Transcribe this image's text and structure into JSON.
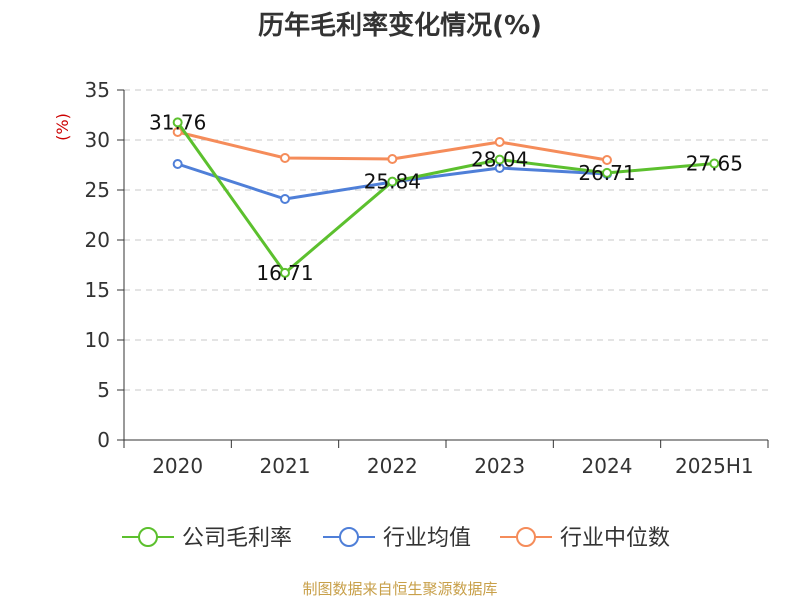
{
  "chart_data": {
    "type": "line",
    "title": "历年毛利率变化情况(%)",
    "ylabel": "(%)",
    "xlabel": "",
    "ylim": [
      0,
      35
    ],
    "yticks": [
      0,
      5,
      10,
      15,
      20,
      25,
      30,
      35
    ],
    "categories": [
      "2020",
      "2021",
      "2022",
      "2023",
      "2024",
      "2025H1"
    ],
    "grid": true,
    "legend_position": "bottom",
    "series": [
      {
        "name": "公司毛利率",
        "color": "#5cc02e",
        "values": [
          31.76,
          16.71,
          25.84,
          28.04,
          26.71,
          27.65
        ],
        "data_labels": [
          "31.76",
          "16.71",
          "25.84",
          "28.04",
          "26.71",
          "27.65"
        ]
      },
      {
        "name": "行业均值",
        "color": "#4f7fd8",
        "values": [
          27.6,
          24.1,
          25.8,
          27.2,
          26.6,
          null
        ]
      },
      {
        "name": "行业中位数",
        "color": "#f58c5a",
        "values": [
          30.8,
          28.2,
          28.1,
          29.8,
          28.0,
          null
        ]
      }
    ],
    "source": "制图数据来自恒生聚源数据库"
  }
}
